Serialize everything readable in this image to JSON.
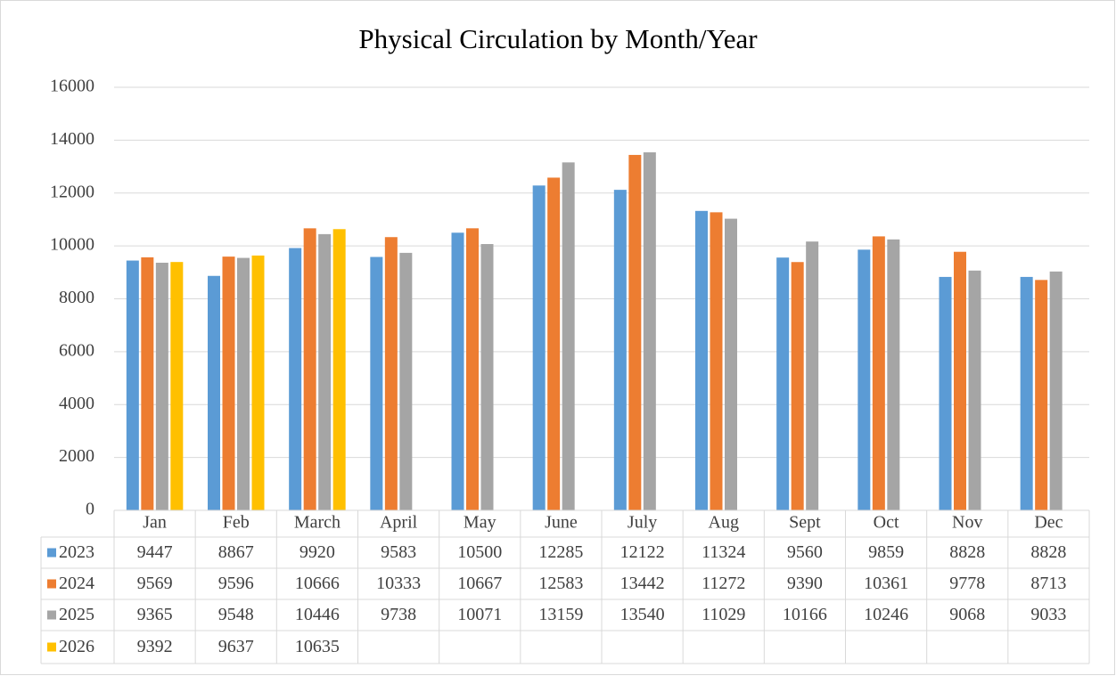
{
  "chart_data": {
    "type": "bar",
    "title": "Physical Circulation by Month/Year",
    "categories": [
      "Jan",
      "Feb",
      "March",
      "April",
      "May",
      "June",
      "July",
      "Aug",
      "Sept",
      "Oct",
      "Nov",
      "Dec"
    ],
    "series": [
      {
        "name": "2023",
        "color": "#5b9bd5",
        "values": [
          9447,
          8867,
          9920,
          9583,
          10500,
          12285,
          12122,
          11324,
          9560,
          9859,
          8828,
          8828
        ]
      },
      {
        "name": "2024",
        "color": "#ed7d31",
        "values": [
          9569,
          9596,
          10666,
          10333,
          10667,
          12583,
          13442,
          11272,
          9390,
          10361,
          9778,
          8713
        ]
      },
      {
        "name": "2025",
        "color": "#a5a5a5",
        "values": [
          9365,
          9548,
          10446,
          9738,
          10071,
          13159,
          13540,
          11029,
          10166,
          10246,
          9068,
          9033
        ]
      },
      {
        "name": "2026",
        "color": "#ffc000",
        "values": [
          9392,
          9637,
          10635,
          null,
          null,
          null,
          null,
          null,
          null,
          null,
          null,
          null
        ]
      }
    ],
    "ylim": [
      0,
      16000
    ],
    "yticks": [
      0,
      2000,
      4000,
      6000,
      8000,
      10000,
      12000,
      14000,
      16000
    ],
    "grid": true
  }
}
